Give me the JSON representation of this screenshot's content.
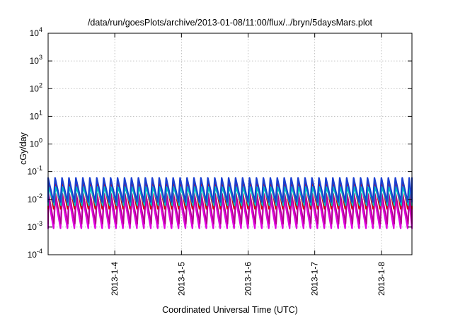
{
  "chart_data": {
    "type": "line",
    "title": "/data/run/goesPlots/archive/2013-01-08/11:00/flux/../bryn/5daysMars.plot",
    "xlabel": "Coordinated Universal Time (UTC)",
    "ylabel": "cGy/day",
    "yscale": "log",
    "ylim": [
      0.0001,
      10000
    ],
    "xlim": [
      "2013-01-03T00:00",
      "2013-01-08T11:00"
    ],
    "grid": true,
    "legend": "none",
    "y_ticks": [
      {
        "base": "10",
        "exp": "-4"
      },
      {
        "base": "10",
        "exp": "-3"
      },
      {
        "base": "10",
        "exp": "-2"
      },
      {
        "base": "10",
        "exp": "-1"
      },
      {
        "base": "10",
        "exp": "0"
      },
      {
        "base": "10",
        "exp": "1"
      },
      {
        "base": "10",
        "exp": "2"
      },
      {
        "base": "10",
        "exp": "3"
      },
      {
        "base": "10",
        "exp": "4"
      }
    ],
    "x_ticks": [
      {
        "label": "2013-1-4",
        "t": "2013-01-04T00:00"
      },
      {
        "label": "2013-1-5",
        "t": "2013-01-05T00:00"
      },
      {
        "label": "2013-1-6",
        "t": "2013-01-06T00:00"
      },
      {
        "label": "2013-1-7",
        "t": "2013-01-07T00:00"
      },
      {
        "label": "2013-1-8",
        "t": "2013-01-08T00:00"
      }
    ],
    "sawtooth_period_hours": 2.5,
    "series": [
      {
        "color": "#e000e0",
        "peak": 0.012,
        "trough": 0.0009
      },
      {
        "color": "#b0008a",
        "peak": 0.016,
        "trough": 0.0013
      },
      {
        "color": "#d60000",
        "peak": 0.05,
        "trough": 0.0045
      },
      {
        "color": "#00c0c0",
        "peak": 0.028,
        "trough": 0.006
      },
      {
        "color": "#1a3fd0",
        "peak": 0.06,
        "trough": 0.008
      }
    ]
  }
}
